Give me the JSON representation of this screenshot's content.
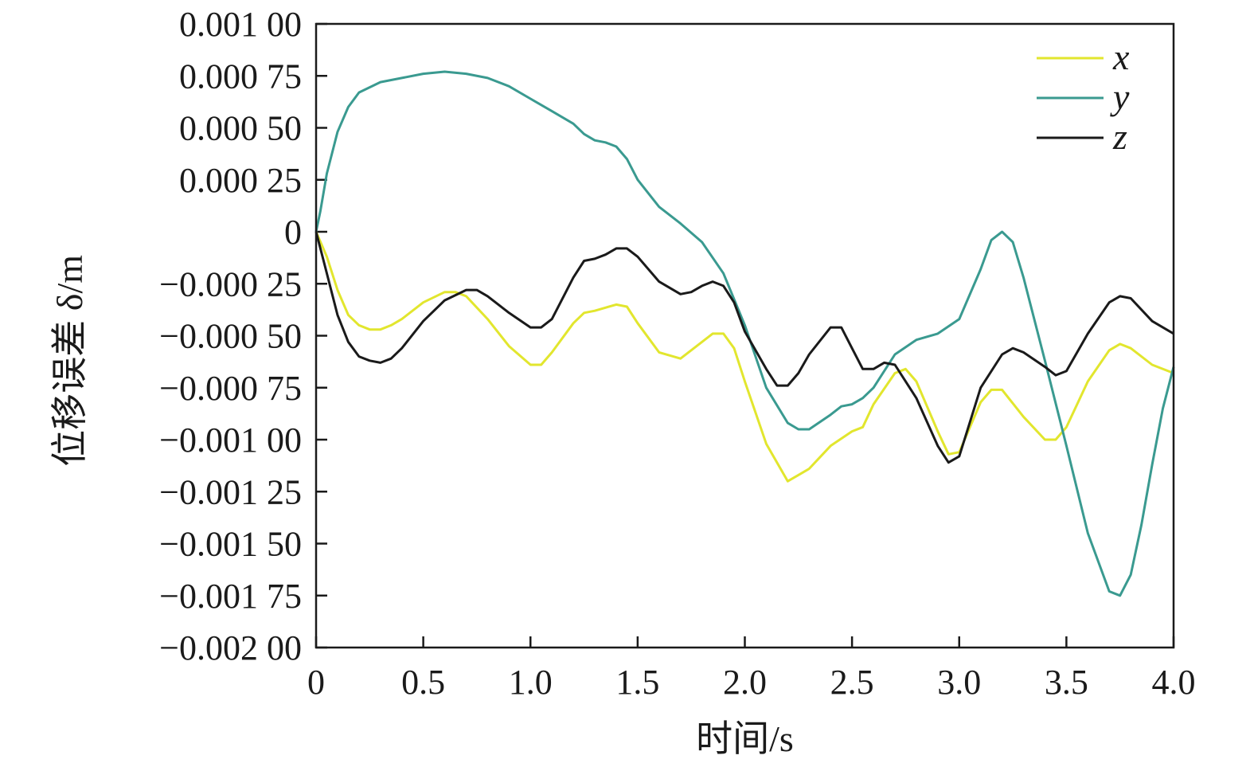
{
  "chart_data": {
    "type": "line",
    "xlabel": "时间/s",
    "ylabel": "位移误差 δ/m",
    "xlim": [
      0,
      4.0
    ],
    "ylim": [
      -0.002,
      0.001
    ],
    "x_ticks": [
      0,
      0.5,
      1.0,
      1.5,
      2.0,
      2.5,
      3.0,
      3.5,
      4.0
    ],
    "x_tick_labels": [
      "0",
      "0.5",
      "1.0",
      "1.5",
      "2.0",
      "2.5",
      "3.0",
      "3.5",
      "4.0"
    ],
    "y_ticks": [
      0.001,
      0.00075,
      0.0005,
      0.00025,
      0,
      -0.00025,
      -0.0005,
      -0.00075,
      -0.001,
      -0.00125,
      -0.0015,
      -0.00175,
      -0.002
    ],
    "y_tick_labels": [
      "0.001 00",
      "0.000 75",
      "0.000 50",
      "0.000 25",
      "0",
      "−0.000 25",
      "−0.000 50",
      "−0.000 75",
      "−0.001 00",
      "−0.001 25",
      "−0.001 50",
      "−0.001 75",
      "−0.002 00"
    ],
    "grid": false,
    "legend_position": "top-right",
    "series": [
      {
        "name": "x",
        "color": "#e2e62e",
        "x": [
          0,
          0.05,
          0.1,
          0.15,
          0.2,
          0.25,
          0.3,
          0.35,
          0.4,
          0.5,
          0.6,
          0.65,
          0.7,
          0.8,
          0.9,
          1.0,
          1.05,
          1.1,
          1.2,
          1.25,
          1.3,
          1.4,
          1.45,
          1.5,
          1.6,
          1.7,
          1.8,
          1.85,
          1.9,
          1.95,
          2.0,
          2.1,
          2.2,
          2.25,
          2.3,
          2.4,
          2.5,
          2.55,
          2.6,
          2.7,
          2.75,
          2.8,
          2.9,
          2.95,
          3.0,
          3.1,
          3.15,
          3.2,
          3.3,
          3.4,
          3.45,
          3.5,
          3.6,
          3.7,
          3.75,
          3.8,
          3.9,
          4.0
        ],
        "values": [
          0,
          -0.00012,
          -0.00028,
          -0.0004,
          -0.00045,
          -0.00047,
          -0.00047,
          -0.00045,
          -0.00042,
          -0.00034,
          -0.00029,
          -0.00029,
          -0.00031,
          -0.00042,
          -0.00055,
          -0.00064,
          -0.00064,
          -0.00058,
          -0.00044,
          -0.00039,
          -0.00038,
          -0.00035,
          -0.00036,
          -0.00044,
          -0.00058,
          -0.00061,
          -0.00053,
          -0.00049,
          -0.00049,
          -0.00056,
          -0.00072,
          -0.00102,
          -0.0012,
          -0.00117,
          -0.00114,
          -0.00103,
          -0.00096,
          -0.00094,
          -0.00083,
          -0.00068,
          -0.00066,
          -0.00072,
          -0.00096,
          -0.00107,
          -0.00106,
          -0.00082,
          -0.00076,
          -0.00076,
          -0.00089,
          -0.001,
          -0.001,
          -0.00094,
          -0.00072,
          -0.00057,
          -0.00054,
          -0.00056,
          -0.00064,
          -0.00068
        ]
      },
      {
        "name": "y",
        "color": "#3a9a90",
        "x": [
          0,
          0.02,
          0.05,
          0.1,
          0.15,
          0.2,
          0.3,
          0.4,
          0.5,
          0.6,
          0.7,
          0.8,
          0.9,
          1.0,
          1.1,
          1.2,
          1.25,
          1.3,
          1.35,
          1.4,
          1.45,
          1.5,
          1.6,
          1.7,
          1.8,
          1.9,
          2.0,
          2.1,
          2.2,
          2.25,
          2.3,
          2.4,
          2.45,
          2.5,
          2.55,
          2.6,
          2.7,
          2.8,
          2.9,
          3.0,
          3.1,
          3.15,
          3.2,
          3.25,
          3.3,
          3.4,
          3.5,
          3.6,
          3.7,
          3.75,
          3.8,
          3.85,
          3.9,
          3.95,
          4.0
        ],
        "values": [
          0,
          0.0001,
          0.00028,
          0.00048,
          0.0006,
          0.00067,
          0.00072,
          0.00074,
          0.00076,
          0.00077,
          0.00076,
          0.00074,
          0.0007,
          0.00064,
          0.00058,
          0.00052,
          0.00047,
          0.00044,
          0.00043,
          0.00041,
          0.00035,
          0.00025,
          0.00012,
          4e-05,
          -5e-05,
          -0.0002,
          -0.00045,
          -0.00075,
          -0.00092,
          -0.00095,
          -0.00095,
          -0.00088,
          -0.00084,
          -0.00083,
          -0.0008,
          -0.00075,
          -0.00059,
          -0.00052,
          -0.00049,
          -0.00042,
          -0.00018,
          -4e-05,
          0,
          -5e-05,
          -0.00022,
          -0.00062,
          -0.00103,
          -0.00145,
          -0.00173,
          -0.00175,
          -0.00165,
          -0.00141,
          -0.00112,
          -0.00085,
          -0.00065
        ]
      },
      {
        "name": "z",
        "color": "#1a1a1a",
        "x": [
          0,
          0.05,
          0.1,
          0.15,
          0.2,
          0.25,
          0.3,
          0.35,
          0.4,
          0.5,
          0.6,
          0.7,
          0.75,
          0.8,
          0.9,
          1.0,
          1.05,
          1.1,
          1.2,
          1.25,
          1.3,
          1.35,
          1.4,
          1.45,
          1.5,
          1.6,
          1.7,
          1.75,
          1.8,
          1.85,
          1.9,
          1.95,
          2.0,
          2.1,
          2.15,
          2.2,
          2.25,
          2.3,
          2.4,
          2.45,
          2.5,
          2.55,
          2.6,
          2.65,
          2.7,
          2.8,
          2.9,
          2.95,
          3.0,
          3.1,
          3.2,
          3.25,
          3.3,
          3.4,
          3.45,
          3.5,
          3.6,
          3.7,
          3.75,
          3.8,
          3.9,
          4.0
        ],
        "values": [
          0,
          -0.0002,
          -0.0004,
          -0.00053,
          -0.0006,
          -0.00062,
          -0.00063,
          -0.00061,
          -0.00056,
          -0.00043,
          -0.00033,
          -0.00028,
          -0.00028,
          -0.00031,
          -0.00039,
          -0.00046,
          -0.00046,
          -0.00042,
          -0.00022,
          -0.00014,
          -0.00013,
          -0.00011,
          -8e-05,
          -8e-05,
          -0.00012,
          -0.00024,
          -0.0003,
          -0.00029,
          -0.00026,
          -0.00024,
          -0.00026,
          -0.00034,
          -0.00048,
          -0.00066,
          -0.00074,
          -0.00074,
          -0.00068,
          -0.00059,
          -0.00046,
          -0.00046,
          -0.00056,
          -0.00066,
          -0.00066,
          -0.00063,
          -0.00064,
          -0.0008,
          -0.00103,
          -0.00111,
          -0.00108,
          -0.00075,
          -0.00059,
          -0.00056,
          -0.00058,
          -0.00065,
          -0.00069,
          -0.00067,
          -0.00049,
          -0.00034,
          -0.00031,
          -0.00032,
          -0.00043,
          -0.00049
        ]
      }
    ]
  }
}
